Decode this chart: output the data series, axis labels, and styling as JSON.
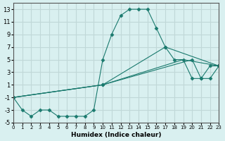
{
  "xlabel": "Humidex (Indice chaleur)",
  "bg_color": "#d9f0f0",
  "grid_color": "#c0d8d8",
  "line_color": "#1a7a6e",
  "xlim": [
    0,
    23
  ],
  "ylim": [
    -5,
    14
  ],
  "xticks": [
    0,
    1,
    2,
    3,
    4,
    5,
    6,
    7,
    8,
    9,
    10,
    11,
    12,
    13,
    14,
    15,
    16,
    17,
    18,
    19,
    20,
    21,
    22,
    23
  ],
  "yticks": [
    -5,
    -3,
    -1,
    1,
    3,
    5,
    7,
    9,
    11,
    13
  ],
  "series": [
    {
      "x": [
        0,
        1,
        2,
        3,
        4,
        5,
        6,
        7,
        8,
        9,
        10,
        11,
        12,
        13,
        14,
        15,
        16,
        17,
        18,
        19,
        20,
        21,
        22,
        23
      ],
      "y": [
        -1,
        -3,
        -4,
        -3,
        -3,
        -4,
        -4,
        -4,
        -4,
        -3,
        5,
        9,
        12,
        13,
        13,
        13,
        10,
        7,
        5,
        5,
        2,
        2,
        4,
        4
      ],
      "marker": "D",
      "markersize": 2.5
    },
    {
      "x": [
        0,
        10,
        17,
        23
      ],
      "y": [
        -1,
        1,
        7,
        4
      ],
      "marker": "D",
      "markersize": 2.5
    },
    {
      "x": [
        0,
        10,
        19,
        23
      ],
      "y": [
        -1,
        1,
        5,
        4
      ],
      "marker": "",
      "markersize": 0
    },
    {
      "x": [
        0,
        10,
        20,
        21,
        22,
        23
      ],
      "y": [
        -1,
        1,
        5,
        2,
        2,
        4
      ],
      "marker": "D",
      "markersize": 2.5
    }
  ]
}
